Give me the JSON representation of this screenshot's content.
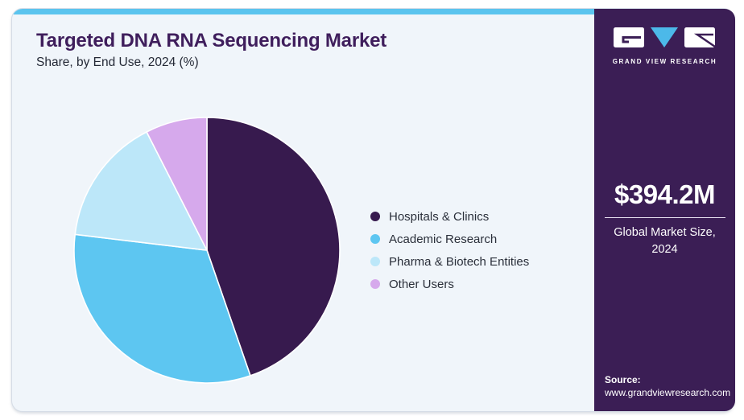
{
  "header": {
    "title": "Targeted DNA RNA Sequencing Market",
    "subtitle": "Share, by End Use, 2024 (%)"
  },
  "chart_data": {
    "type": "pie",
    "title": "Targeted DNA RNA Sequencing Market Share, by End Use, 2024 (%)",
    "categories": [
      "Hospitals & Clinics",
      "Academic Research",
      "Pharma & Biotech Entities",
      "Other Users"
    ],
    "values": [
      44.7,
      32.2,
      15.6,
      7.5
    ],
    "unit": "%",
    "colors": [
      "#371a4e",
      "#5dc6f1",
      "#bce7f9",
      "#d6a9ec"
    ],
    "start_angle_deg": 0,
    "direction": "clockwise",
    "legend_position": "right",
    "data_labels": false
  },
  "side_panel": {
    "brand_name": "GRAND VIEW RESEARCH",
    "market_size_value": "$394.2M",
    "market_size_label": "Global Market Size, 2024",
    "source_label": "Source:",
    "source_url": "www.grandviewresearch.com"
  },
  "colors": {
    "accent_bar": "#5bc4ee",
    "panel_background": "#3b1e55",
    "card_background": "#f0f5fa",
    "title_color": "#3f1e5c",
    "logo_triangle": "#4cb9e9"
  }
}
